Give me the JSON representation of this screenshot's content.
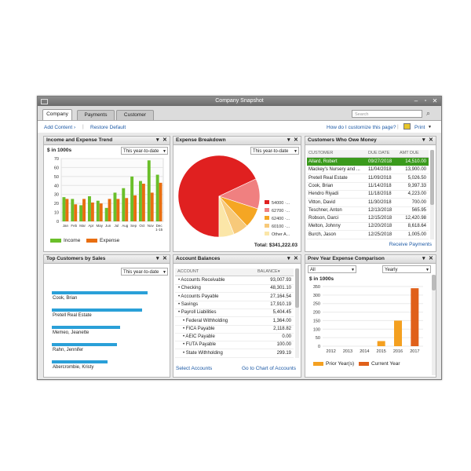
{
  "window": {
    "title": "Company Snapshot"
  },
  "tabs": [
    {
      "label": "Company"
    },
    {
      "label": "Payments"
    },
    {
      "label": "Customer"
    }
  ],
  "search": {
    "placeholder": "Search"
  },
  "toolbar": {
    "add_content": "Add Content",
    "restore_default": "Restore Default",
    "customize": "How do I customize this page?",
    "print": "Print"
  },
  "income_expense": {
    "title": "Income and Expense Trend",
    "filter": "This year-to-date",
    "unit": "$ in 1000s",
    "legend": [
      "Income",
      "Expense"
    ],
    "colors": {
      "income": "#6abf2a",
      "expense": "#e86e10"
    },
    "chart_data": {
      "type": "bar",
      "title": "Income and Expense Trend",
      "ylabel": "$ in 1000s",
      "ylim": [
        0,
        70
      ],
      "yticks": [
        0,
        10,
        20,
        30,
        40,
        50,
        60,
        70
      ],
      "categories": [
        "Jan",
        "Feb",
        "Mar",
        "Apr",
        "May",
        "Jun",
        "Jul",
        "Aug",
        "Sep",
        "Oct",
        "Nov",
        "Dec 1-15"
      ],
      "series": [
        {
          "name": "Income",
          "values": [
            27,
            25,
            18,
            28,
            23,
            15,
            32,
            37,
            50,
            45,
            68,
            52
          ]
        },
        {
          "name": "Expense",
          "values": [
            25,
            19,
            25,
            21,
            20,
            25,
            25,
            26,
            29,
            42,
            32,
            43
          ]
        }
      ]
    }
  },
  "expense_breakdown": {
    "title": "Expense Breakdown",
    "filter": "This year-to-date",
    "total": "Total: $341,222.03",
    "chart_data": {
      "type": "pie",
      "labels": [
        "54000 ·...",
        "62700 ·...",
        "62400 ·...",
        "60100 ·...",
        "Other A..."
      ],
      "values": [
        68,
        12,
        8,
        6,
        6
      ],
      "colors": [
        "#e02020",
        "#f08080",
        "#f5a623",
        "#f7c97a",
        "#fbe6a8"
      ]
    }
  },
  "customers_owe": {
    "title": "Customers Who Owe Money",
    "columns": [
      "CUSTOMER",
      "DUE DATE",
      "AMT DUE"
    ],
    "rows": [
      [
        "Allard, Robert",
        "09/27/2018",
        "14,510.00"
      ],
      [
        "Mackey's Nursery and ...",
        "11/04/2018",
        "13,900.00"
      ],
      [
        "Pretell Real Estate",
        "11/09/2018",
        "5,026.50"
      ],
      [
        "Cook, Brian",
        "11/14/2018",
        "9,397.33"
      ],
      [
        "Hendro Riyadi",
        "11/18/2018",
        "4,223.00"
      ],
      [
        "Vitton, David",
        "11/30/2018",
        "700.00"
      ],
      [
        "Teschner, Anton",
        "12/13/2018",
        "565.95"
      ],
      [
        "Robson, Darci",
        "12/15/2018",
        "12,420.98"
      ],
      [
        "Melton, Johnny",
        "12/20/2018",
        "8,618.64"
      ],
      [
        "Burch, Jason",
        "12/25/2018",
        "1,005.00"
      ]
    ],
    "footer": "Receive Payments"
  },
  "top_customers": {
    "title": "Top Customers by Sales",
    "filter": "This year-to-date",
    "chart_data": {
      "type": "bar",
      "categories": [
        "Cook, Brian",
        "Pretell Real Estate",
        "Memeo, Jeanette",
        "Rahn, Jennifer",
        "Abercrombie, Kristy"
      ],
      "values": [
        100,
        94,
        71,
        68,
        58
      ]
    }
  },
  "account_balances": {
    "title": "Account Balances",
    "columns": [
      "ACCOUNT",
      "BALANCE"
    ],
    "rows": [
      {
        "name": "Accounts Receivable",
        "balance": "93,007.93",
        "indent": 0
      },
      {
        "name": "Checking",
        "balance": "48,301.10",
        "indent": 0
      },
      {
        "name": "Accounts Payable",
        "balance": "27,164.54",
        "indent": 0
      },
      {
        "name": "Savings",
        "balance": "17,910.19",
        "indent": 0
      },
      {
        "name": "Payroll Liabilities",
        "balance": "5,404.45",
        "indent": 0
      },
      {
        "name": "Federal Withholding",
        "balance": "1,364.00",
        "indent": 1
      },
      {
        "name": "FICA Payable",
        "balance": "2,118.82",
        "indent": 1
      },
      {
        "name": "AEIC Payable",
        "balance": "0.00",
        "indent": 1
      },
      {
        "name": "FUTA Payable",
        "balance": "100.00",
        "indent": 1
      },
      {
        "name": "State Withholding",
        "balance": "299.19",
        "indent": 1
      }
    ],
    "footer_left": "Select Accounts",
    "footer_right": "Go to Chart of Accounts"
  },
  "prev_year": {
    "title": "Prev Year Expense Comparison",
    "filter_left": "All",
    "filter_right": "Yearly",
    "unit": "$ in 1000s",
    "legend": [
      "Prior Year(s)",
      "Current Year"
    ],
    "colors": {
      "prior": "#f4a020",
      "current": "#e0601a"
    },
    "chart_data": {
      "type": "bar",
      "ylabel": "$ in 1000s",
      "ylim": [
        0,
        350
      ],
      "yticks": [
        0,
        50,
        100,
        150,
        200,
        250,
        300,
        350
      ],
      "categories": [
        "2012",
        "2013",
        "2014",
        "2015",
        "2016",
        "2017"
      ],
      "series": [
        {
          "name": "Prior Year(s)",
          "values": [
            0,
            0,
            0,
            30,
            150,
            0
          ]
        },
        {
          "name": "Current Year",
          "values": [
            0,
            0,
            0,
            0,
            0,
            340
          ]
        }
      ]
    }
  }
}
